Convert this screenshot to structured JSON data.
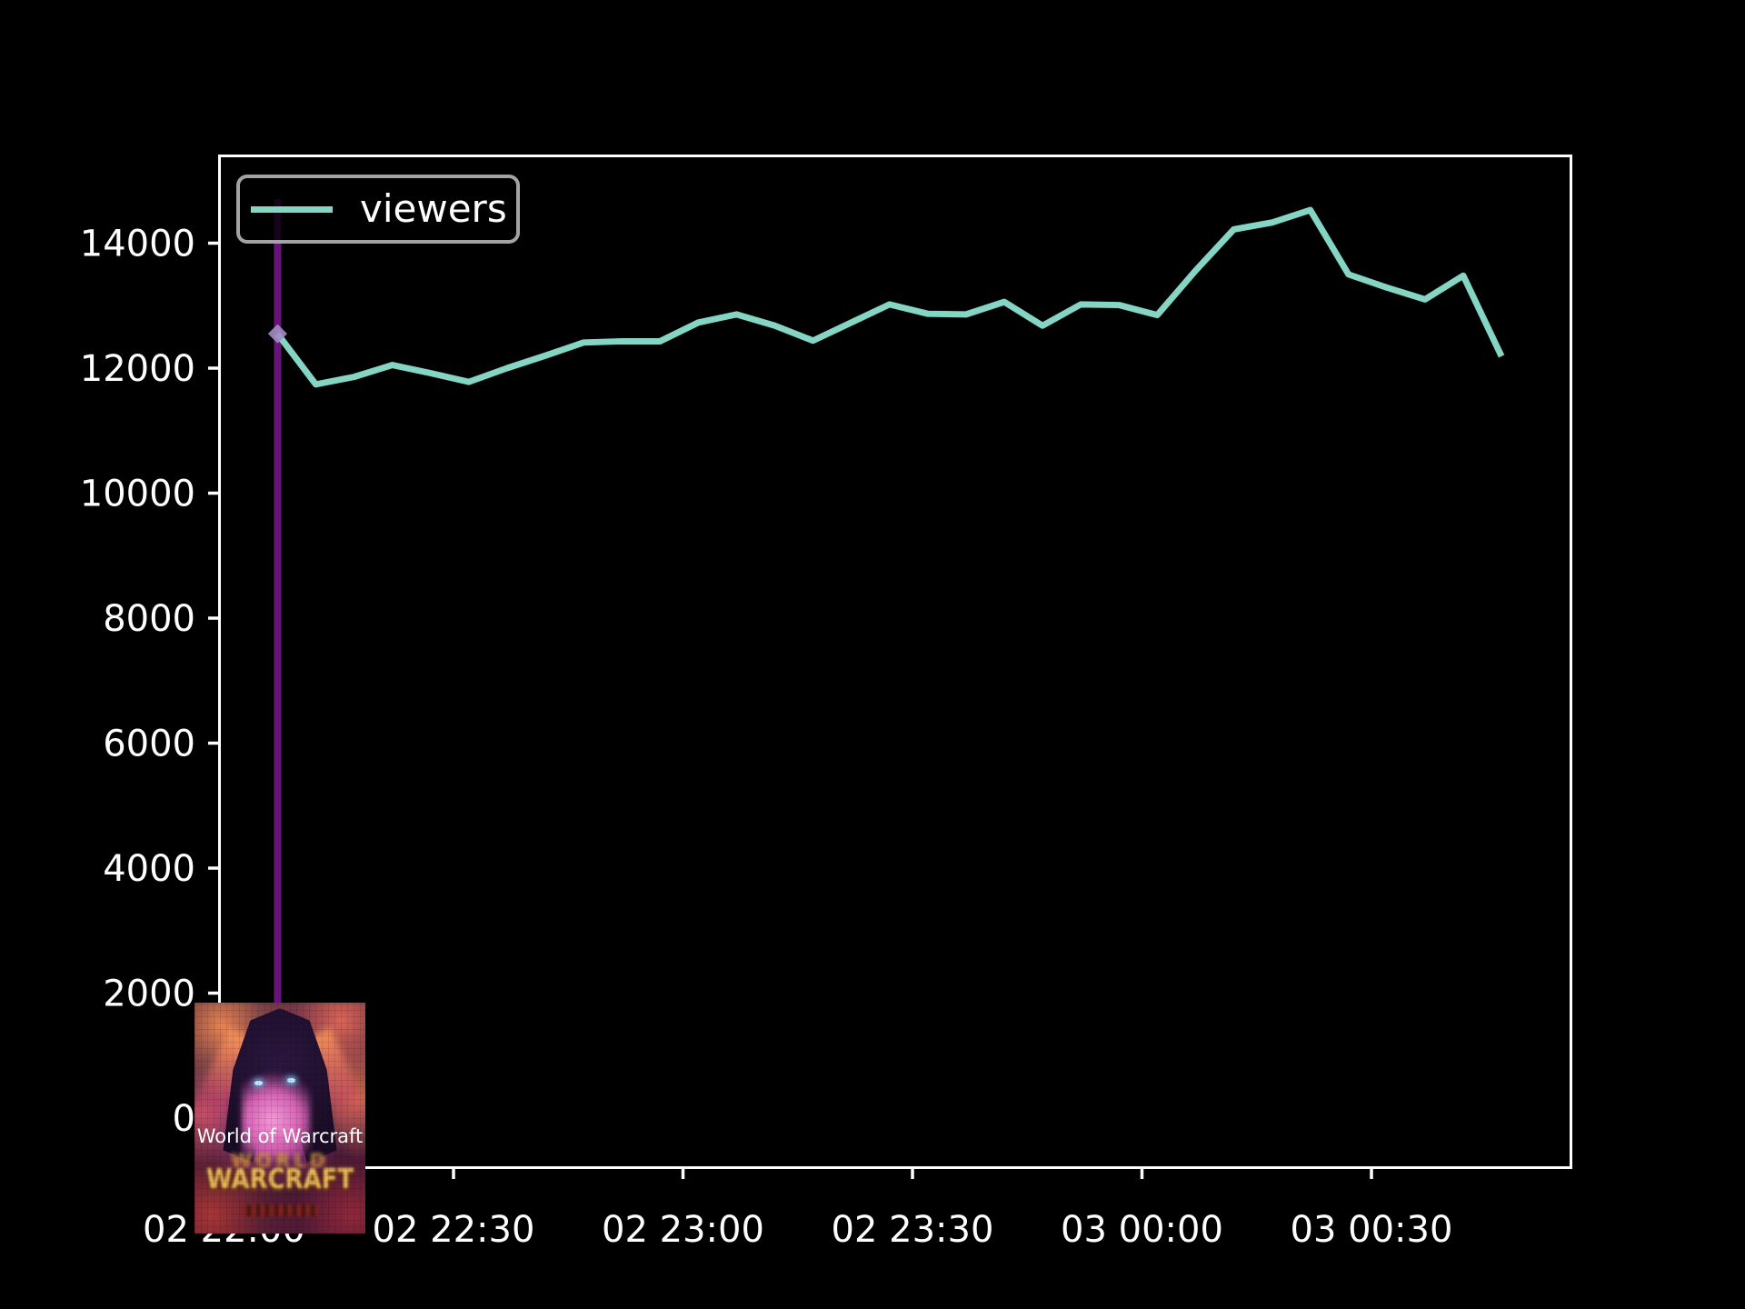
{
  "figure": {
    "background": "#000000",
    "axis_color": "#ffffff"
  },
  "legend": {
    "label": "viewers",
    "swatch_color": "#85d5c5",
    "border_color": "#a3a3a3"
  },
  "annotation": {
    "label": "World of Warcraft"
  },
  "game_image": {
    "logo_top": "WORLD",
    "logo_main": "WARCRAFT"
  },
  "chart_data": {
    "type": "line",
    "title": "",
    "xlabel": "",
    "ylabel": "",
    "grid": false,
    "legend_position": "upper left",
    "axis_color": "#ffffff",
    "y_ticks": [
      0,
      2000,
      4000,
      6000,
      8000,
      10000,
      12000,
      14000
    ],
    "ylim": [
      -770,
      15375
    ],
    "x_tick_labels": [
      "02 22:00",
      "02 22:30",
      "02 23:00",
      "02 23:30",
      "03 00:00",
      "03 00:30"
    ],
    "series": [
      {
        "name": "viewers",
        "color": "#85d5c5",
        "x": [
          "02 22:07",
          "02 22:12",
          "02 22:17",
          "02 22:22",
          "02 22:27",
          "02 22:32",
          "02 22:37",
          "02 22:42",
          "02 22:47",
          "02 22:52",
          "02 22:57",
          "02 23:02",
          "02 23:07",
          "02 23:12",
          "02 23:17",
          "02 23:22",
          "02 23:27",
          "02 23:32",
          "02 23:37",
          "02 23:42",
          "02 23:47",
          "02 23:52",
          "02 23:57",
          "03 00:02",
          "03 00:07",
          "03 00:12",
          "03 00:17",
          "03 00:22",
          "03 00:27",
          "03 00:32",
          "03 00:37",
          "03 00:42",
          "03 00:47"
        ],
        "values": [
          12550,
          11740,
          11860,
          12050,
          11920,
          11780,
          12000,
          12200,
          12410,
          12430,
          12430,
          12730,
          12860,
          12680,
          12440,
          12730,
          13020,
          12870,
          12860,
          13060,
          12680,
          13020,
          13010,
          12850,
          13560,
          14220,
          14330,
          14530,
          13500,
          13290,
          13100,
          13480,
          12190
        ]
      }
    ],
    "event_line": {
      "time": "02 22:07",
      "color": "#671379",
      "marker_color": "#a48cc4",
      "label": "World of Warcraft"
    }
  }
}
